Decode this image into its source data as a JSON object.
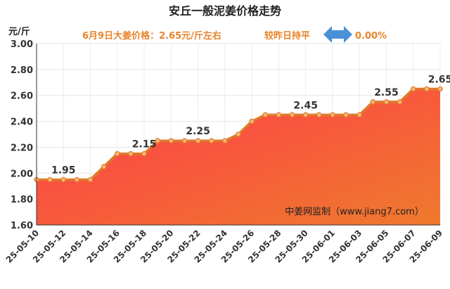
{
  "chart_data": {
    "type": "area",
    "title": "安丘一般泥姜价格走势",
    "subtitle": {
      "price_text": "6月9日大姜价格：2.65元/斤左右",
      "change_text": "较昨日持平",
      "change_value": "0.00%"
    },
    "y_unit": "元/斤",
    "ylim": [
      1.6,
      3.0
    ],
    "yticks": [
      "1.60",
      "1.80",
      "2.00",
      "2.20",
      "2.40",
      "2.60",
      "2.80",
      "3.00"
    ],
    "x_tick_labels": [
      "25-05-10",
      "25-05-12",
      "25-05-14",
      "25-05-16",
      "25-05-18",
      "25-05-20",
      "25-05-22",
      "25-05-24",
      "25-05-26",
      "25-05-28",
      "25-05-30",
      "25-06-01",
      "25-06-03",
      "25-06-05",
      "25-06-07",
      "25-06-09"
    ],
    "values": [
      1.95,
      1.95,
      1.95,
      1.95,
      1.95,
      2.05,
      2.15,
      2.15,
      2.15,
      2.25,
      2.25,
      2.25,
      2.25,
      2.25,
      2.25,
      2.3,
      2.4,
      2.45,
      2.45,
      2.45,
      2.45,
      2.45,
      2.45,
      2.45,
      2.45,
      2.55,
      2.55,
      2.55,
      2.65,
      2.65,
      2.65
    ],
    "data_labels": [
      {
        "index": 2,
        "text": "1.95"
      },
      {
        "index": 8,
        "text": "2.15"
      },
      {
        "index": 12,
        "text": "2.25"
      },
      {
        "index": 20,
        "text": "2.45"
      },
      {
        "index": 26,
        "text": "2.55"
      },
      {
        "index": 30,
        "text": "2.65"
      }
    ],
    "grid": true,
    "watermark": "中姜网监制（www.jiang7.com）",
    "colors": {
      "line": "#e07a2a",
      "marker_fill": "#f5b87a",
      "area_top": "#ff3a4a",
      "area_bottom": "#ef7a2d",
      "subtitle": "#e8842b",
      "arrow": "#4a90d9"
    }
  }
}
